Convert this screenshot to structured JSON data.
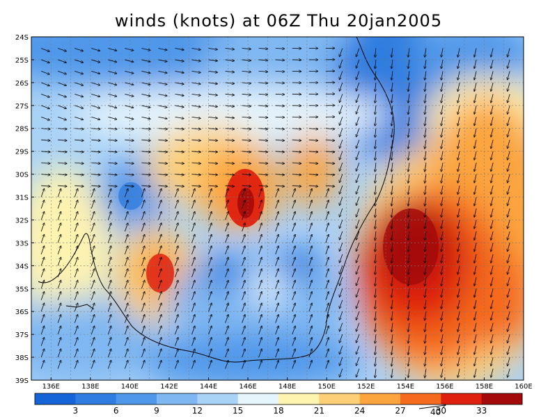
{
  "title": "winds (knots) at 06Z Thu 20jan2005",
  "map": {
    "lon_range": [
      135,
      160
    ],
    "lat_range": [
      -39,
      -24
    ],
    "lon_ticks": [
      "136E",
      "138E",
      "140E",
      "142E",
      "144E",
      "146E",
      "148E",
      "150E",
      "152E",
      "154E",
      "156E",
      "158E",
      "160E"
    ],
    "lat_ticks": [
      "24S",
      "25S",
      "26S",
      "27S",
      "28S",
      "29S",
      "30S",
      "31S",
      "32S",
      "33S",
      "34S",
      "35S",
      "36S",
      "37S",
      "38S",
      "39S"
    ]
  },
  "colorbar": {
    "labels": [
      "3",
      "6",
      "9",
      "12",
      "15",
      "18",
      "21",
      "24",
      "27",
      "30",
      "33"
    ],
    "colors": [
      "#1565d8",
      "#2f7de0",
      "#4f97ea",
      "#7fb7f2",
      "#a9d2f7",
      "#e6f4fc",
      "#fff3b0",
      "#fdd078",
      "#fca43d",
      "#f56a1e",
      "#e0200e",
      "#a50a0a"
    ]
  },
  "reference_vector": {
    "value": "40"
  },
  "wind_features": {
    "max_speed_knots": 33,
    "strong_core_location": "153E-156E, 32S-34S"
  }
}
